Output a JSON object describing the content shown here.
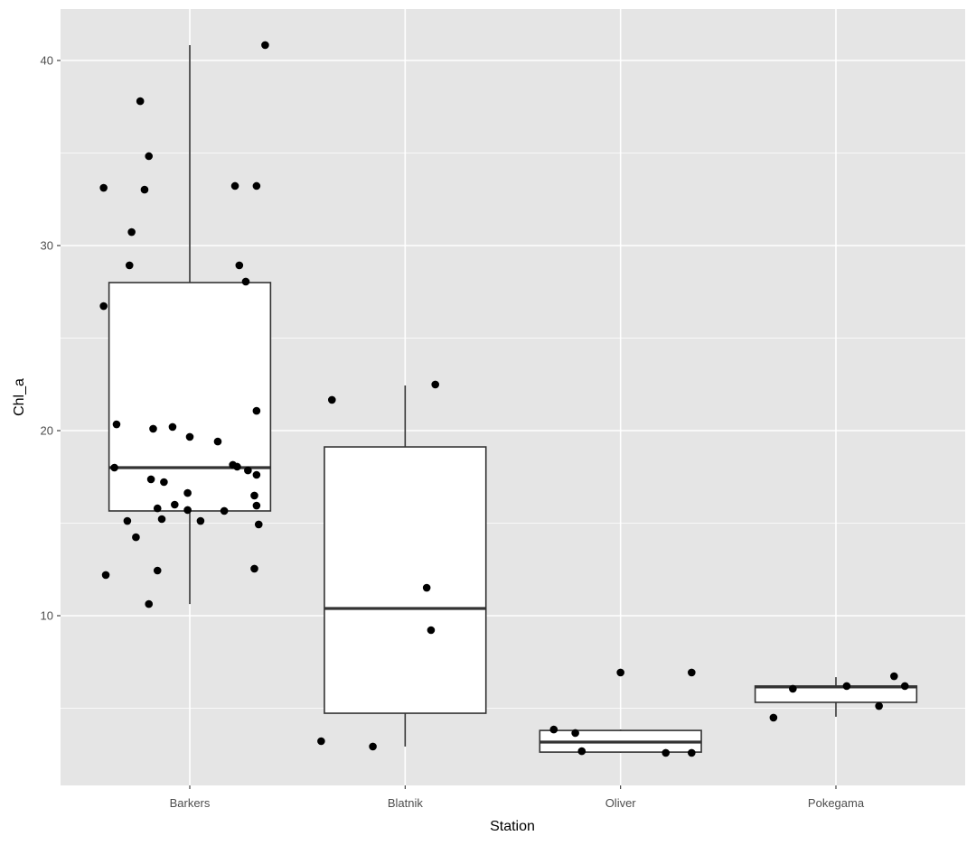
{
  "chart_data": {
    "type": "boxplot",
    "xlabel": "Station",
    "ylabel": "Chl_a",
    "categories": [
      "Barkers",
      "Blatnik",
      "Oliver",
      "Pokegama"
    ],
    "ylim": [
      0.83,
      42.78
    ],
    "xlim": [
      0.4,
      4.6
    ],
    "yticks": [
      10,
      20,
      30,
      40
    ],
    "yminor": [
      5,
      15,
      25,
      35
    ],
    "grid": true,
    "colors": {
      "panel": "#e5e5e5",
      "grid": "#ffffff",
      "box_fill": "#ffffff",
      "box_line": "#333333",
      "point": "#000000"
    },
    "boxes": [
      {
        "category": "Barkers",
        "whisker_low": 10.63,
        "q1": 15.66,
        "median": 18.0,
        "q3": 28.0,
        "whisker_high": 40.83
      },
      {
        "category": "Blatnik",
        "whisker_low": 2.93,
        "q1": 4.73,
        "median": 10.39,
        "q3": 19.12,
        "whisker_high": 22.44
      },
      {
        "category": "Oliver",
        "whisker_low": 2.59,
        "q1": 2.63,
        "median": 3.17,
        "q3": 3.8,
        "whisker_high": 3.85
      },
      {
        "category": "Pokegama",
        "whisker_low": 4.54,
        "q1": 5.32,
        "median": 6.15,
        "q3": 6.2,
        "whisker_high": 6.68
      }
    ],
    "points": [
      [
        1.35,
        40.83
      ],
      [
        0.77,
        37.8
      ],
      [
        0.81,
        34.83
      ],
      [
        0.6,
        33.12
      ],
      [
        0.79,
        33.02
      ],
      [
        1.21,
        33.22
      ],
      [
        1.31,
        33.22
      ],
      [
        0.73,
        30.73
      ],
      [
        0.72,
        28.93
      ],
      [
        1.23,
        28.93
      ],
      [
        1.26,
        28.05
      ],
      [
        0.6,
        26.73
      ],
      [
        1.31,
        21.07
      ],
      [
        0.66,
        20.34
      ],
      [
        0.83,
        20.1
      ],
      [
        0.92,
        20.2
      ],
      [
        1.0,
        19.66
      ],
      [
        1.13,
        19.41
      ],
      [
        0.65,
        18.0
      ],
      [
        1.2,
        18.15
      ],
      [
        1.22,
        18.05
      ],
      [
        1.27,
        17.85
      ],
      [
        1.31,
        17.61
      ],
      [
        0.82,
        17.37
      ],
      [
        0.88,
        17.22
      ],
      [
        0.99,
        16.63
      ],
      [
        1.3,
        16.49
      ],
      [
        0.85,
        15.8
      ],
      [
        0.93,
        16.0
      ],
      [
        0.99,
        15.71
      ],
      [
        1.16,
        15.66
      ],
      [
        1.31,
        15.95
      ],
      [
        0.71,
        15.12
      ],
      [
        0.87,
        15.22
      ],
      [
        1.05,
        15.12
      ],
      [
        1.32,
        14.93
      ],
      [
        0.75,
        14.24
      ],
      [
        0.61,
        12.2
      ],
      [
        0.85,
        12.44
      ],
      [
        1.3,
        12.54
      ],
      [
        0.81,
        10.63
      ],
      [
        1.66,
        21.66
      ],
      [
        2.14,
        22.49
      ],
      [
        2.1,
        11.51
      ],
      [
        2.12,
        9.22
      ],
      [
        1.61,
        3.22
      ],
      [
        1.85,
        2.93
      ],
      [
        3.0,
        6.93
      ],
      [
        3.33,
        6.93
      ],
      [
        2.69,
        3.85
      ],
      [
        2.79,
        3.66
      ],
      [
        2.82,
        2.68
      ],
      [
        3.21,
        2.59
      ],
      [
        3.33,
        2.59
      ],
      [
        3.8,
        6.05
      ],
      [
        4.05,
        6.2
      ],
      [
        4.27,
        6.73
      ],
      [
        4.32,
        6.2
      ],
      [
        4.2,
        5.12
      ],
      [
        3.71,
        4.49
      ]
    ]
  }
}
